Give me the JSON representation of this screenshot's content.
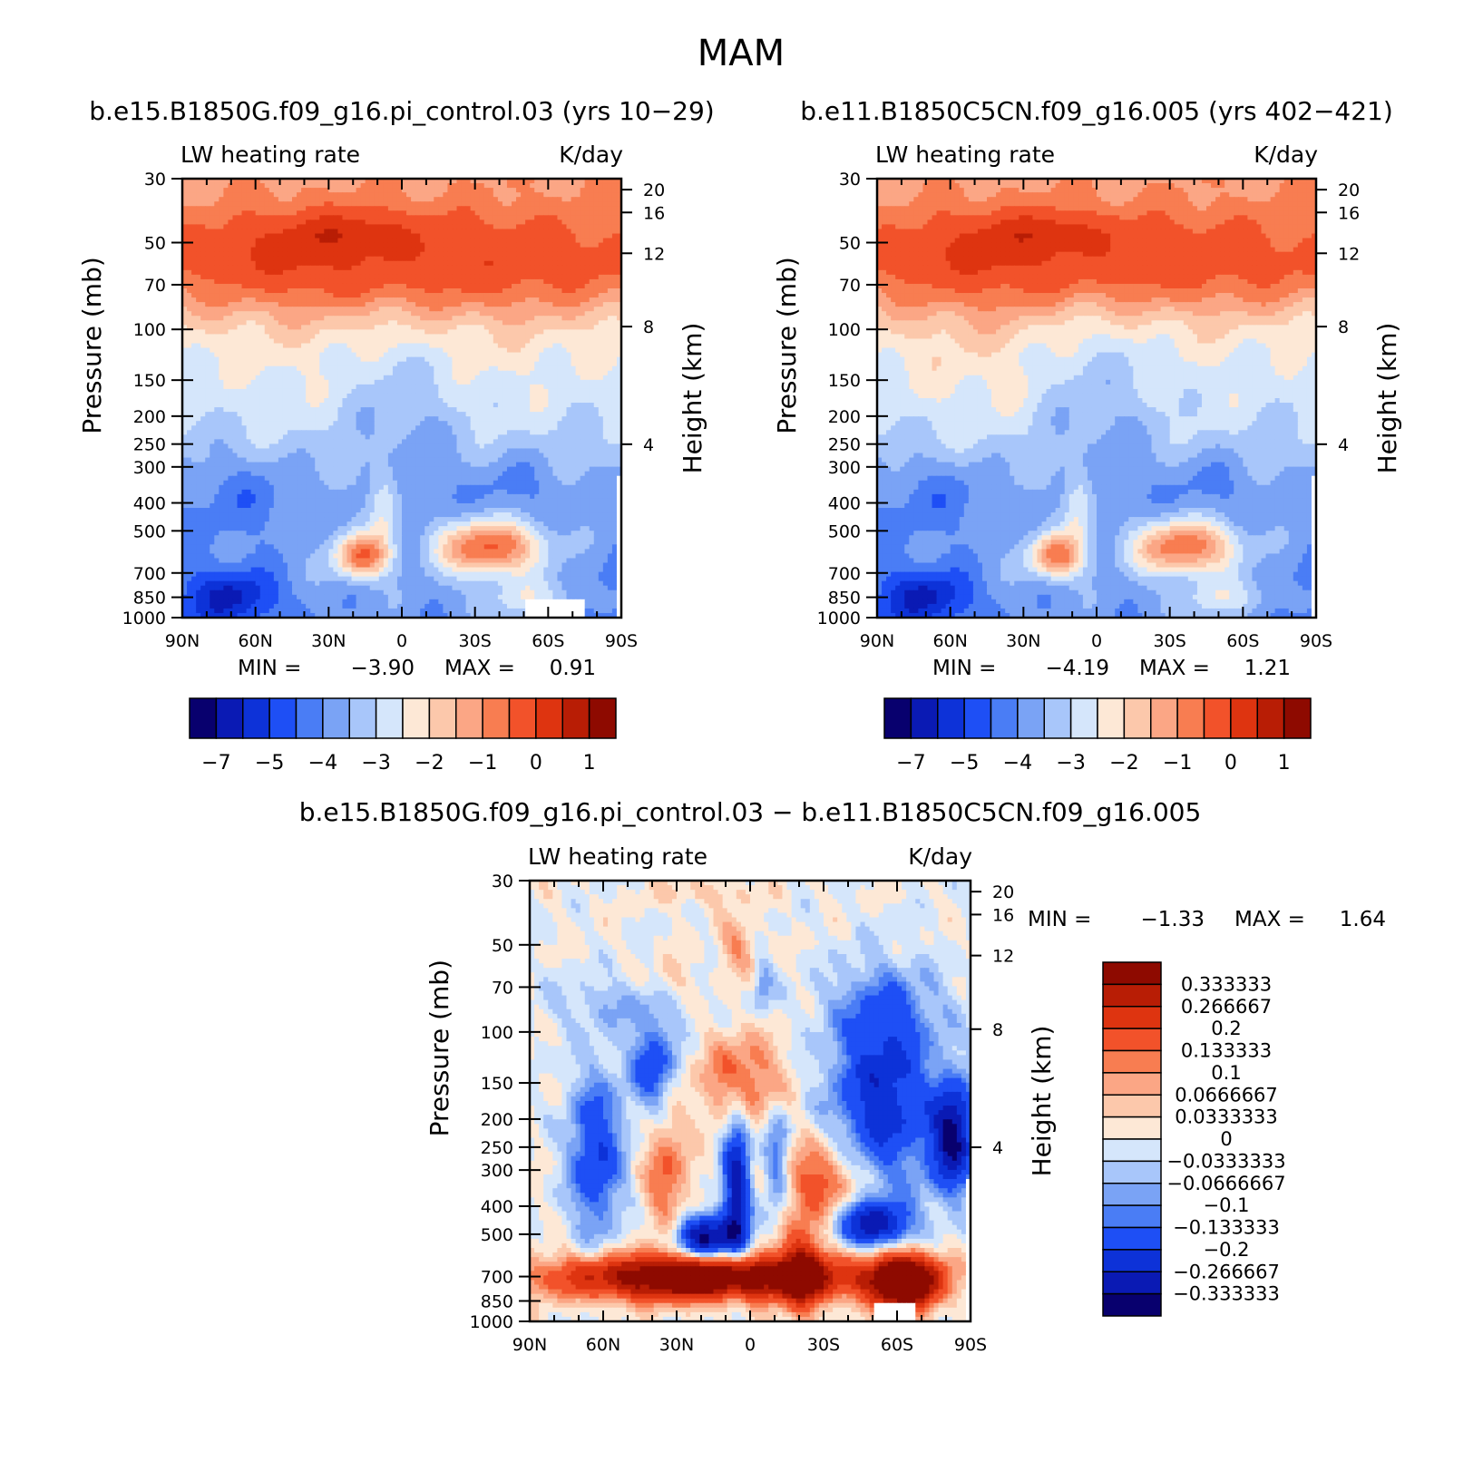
{
  "figure": {
    "title": "MAM"
  },
  "chart_data": [
    {
      "type": "heatmap",
      "id": "p1",
      "title": "b.e15.B1850G.f09_g16.pi_control.03 (yrs 10−29)",
      "left_label": "LW heating rate",
      "right_label": "K/day",
      "ylabel": "Pressure (mb)",
      "ylabel_right": "Height (km)",
      "x_ticks": [
        "90N",
        "60N",
        "30N",
        "0",
        "30S",
        "60S",
        "90S"
      ],
      "y_ticks": [
        "30",
        "50",
        "70",
        "100",
        "150",
        "200",
        "250",
        "300",
        "400",
        "500",
        "700",
        "850",
        "1000"
      ],
      "height_ticks": [
        "20",
        "16",
        "12",
        "8",
        "4"
      ],
      "min_label": "MIN =",
      "min": "−3.90",
      "max_label": "MAX =",
      "max": "0.91",
      "colorbar_labels": [
        "−7",
        "−5",
        "−4",
        "−3",
        "−2",
        "−1",
        "0",
        "1"
      ]
    },
    {
      "type": "heatmap",
      "id": "p2",
      "title": "b.e11.B1850C5CN.f09_g16.005 (yrs 402−421)",
      "left_label": "LW heating rate",
      "right_label": "K/day",
      "ylabel": "Pressure (mb)",
      "ylabel_right": "Height (km)",
      "x_ticks": [
        "90N",
        "60N",
        "30N",
        "0",
        "30S",
        "60S",
        "90S"
      ],
      "y_ticks": [
        "30",
        "50",
        "70",
        "100",
        "150",
        "200",
        "250",
        "300",
        "400",
        "500",
        "700",
        "850",
        "1000"
      ],
      "height_ticks": [
        "20",
        "16",
        "12",
        "8",
        "4"
      ],
      "min_label": "MIN =",
      "min": "−4.19",
      "max_label": "MAX =",
      "max": "1.21",
      "colorbar_labels": [
        "−7",
        "−5",
        "−4",
        "−3",
        "−2",
        "−1",
        "0",
        "1"
      ]
    },
    {
      "type": "heatmap",
      "id": "p3",
      "title": "b.e15.B1850G.f09_g16.pi_control.03 − b.e11.B1850C5CN.f09_g16.005",
      "left_label": "LW heating rate",
      "right_label": "K/day",
      "ylabel": "Pressure (mb)",
      "ylabel_right": "Height (km)",
      "x_ticks": [
        "90N",
        "60N",
        "30N",
        "0",
        "30S",
        "60S",
        "90S"
      ],
      "y_ticks": [
        "30",
        "50",
        "70",
        "100",
        "150",
        "200",
        "250",
        "300",
        "400",
        "500",
        "700",
        "850",
        "1000"
      ],
      "height_ticks": [
        "20",
        "16",
        "12",
        "8",
        "4"
      ],
      "min_label": "MIN =",
      "min": "−1.33",
      "max_label": "MAX =",
      "max": "1.64",
      "colorbar_labels": [
        "0.333333",
        "0.266667",
        "0.2",
        "0.133333",
        "0.1",
        "0.0666667",
        "0.0333333",
        "0",
        "−0.0333333",
        "−0.0666667",
        "−0.1",
        "−0.133333",
        "−0.2",
        "−0.266667",
        "−0.333333"
      ]
    }
  ],
  "colors": {
    "palette": [
      "#08006e",
      "#0a1ab4",
      "#0d32d8",
      "#1e4ff5",
      "#4a7df5",
      "#7aa3f5",
      "#a8c6fa",
      "#d5e6fb",
      "#fde8d6",
      "#fcc8ab",
      "#fba685",
      "#f87d51",
      "#f2522a",
      "#de3410",
      "#b81d05",
      "#8e0a00"
    ],
    "missing": "#ffffff"
  }
}
